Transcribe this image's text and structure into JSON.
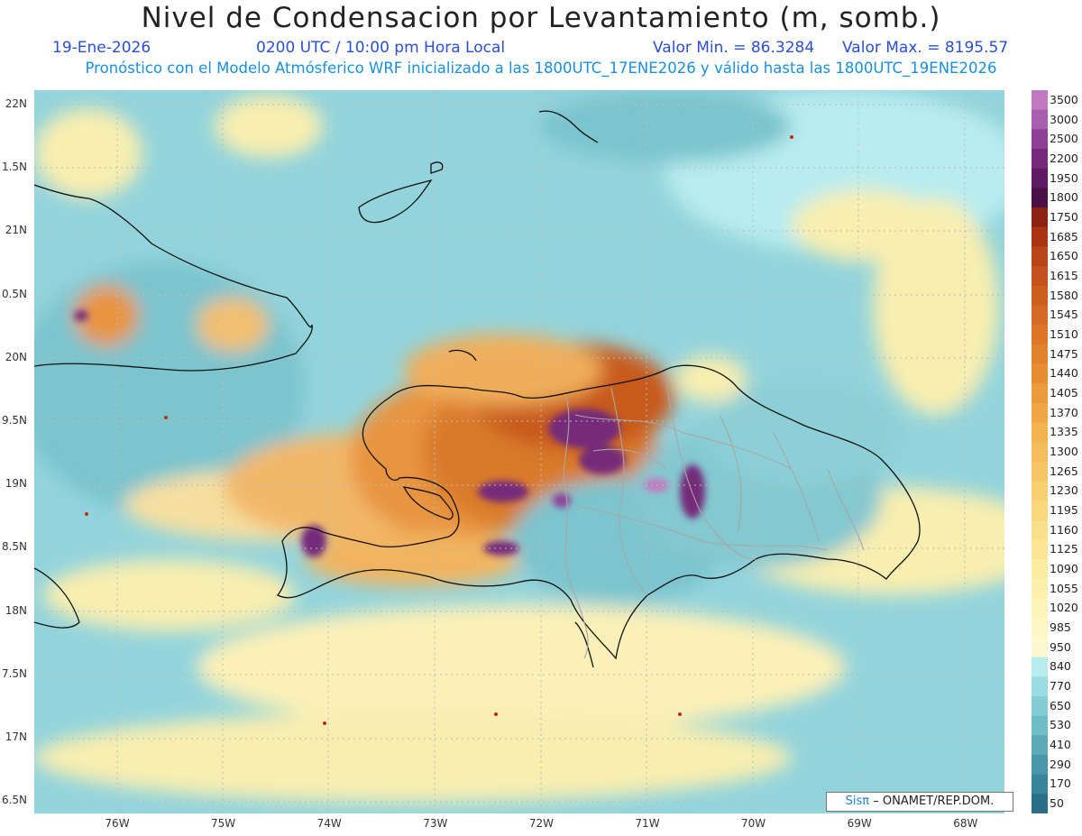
{
  "title": "Nivel de Condensacion por Levantamiento (m, somb.)",
  "date": "19-Ene-2026",
  "time": "0200 UTC / 10:00 pm Hora Local",
  "valor_min": "Valor Min. = 86.3284",
  "valor_max": "Valor Max. = 8195.57",
  "subtitle": "Pronóstico con el Modelo Atmósferico WRF inicializado a las 1800UTC_17ENE2026 y válido hasta las  1800UTC_19ENE2026",
  "lat_labels": [
    "22N",
    "1.5N",
    "21N",
    "0.5N",
    "20N",
    "9.5N",
    "19N",
    "8.5N",
    "18N",
    "7.5N",
    "17N",
    "6.5N"
  ],
  "lon_labels": [
    "76W",
    "75W",
    "74W",
    "73W",
    "72W",
    "71W",
    "70W",
    "69W",
    "68W"
  ],
  "colorbar": {
    "levels": [
      "3500",
      "3000",
      "2500",
      "2200",
      "1950",
      "1800",
      "1750",
      "1685",
      "1650",
      "1615",
      "1580",
      "1545",
      "1510",
      "1475",
      "1440",
      "1405",
      "1370",
      "1335",
      "1300",
      "1265",
      "1230",
      "1195",
      "1160",
      "1125",
      "1090",
      "1055",
      "1020",
      "985",
      "950",
      "840",
      "770",
      "650",
      "530",
      "410",
      "290",
      "170",
      "50"
    ],
    "colors": [
      "#c07bc0",
      "#a85fb0",
      "#8e3f96",
      "#74297a",
      "#5e1a62",
      "#4a0f44",
      "#8a2410",
      "#a83414",
      "#b84418",
      "#c4521c",
      "#cc5e20",
      "#d46a24",
      "#dc7628",
      "#e2822c",
      "#e88e32",
      "#ec9a3a",
      "#f0a644",
      "#f2b24e",
      "#f4bc5a",
      "#f6c666",
      "#f8d072",
      "#f9d87e",
      "#fae08a",
      "#fbe696",
      "#fcecA2",
      "#fdf0ae",
      "#fdf4ba",
      "#fef6c4",
      "#fef8d0",
      "#b9ecee",
      "#99dde2",
      "#84cdd4",
      "#6fbdc7",
      "#5aaab8",
      "#4797a8",
      "#37859a",
      "#2b6f86"
    ]
  },
  "credit": {
    "brand": "Sisπ",
    "text": "– ONAMET/REP.DOM."
  }
}
